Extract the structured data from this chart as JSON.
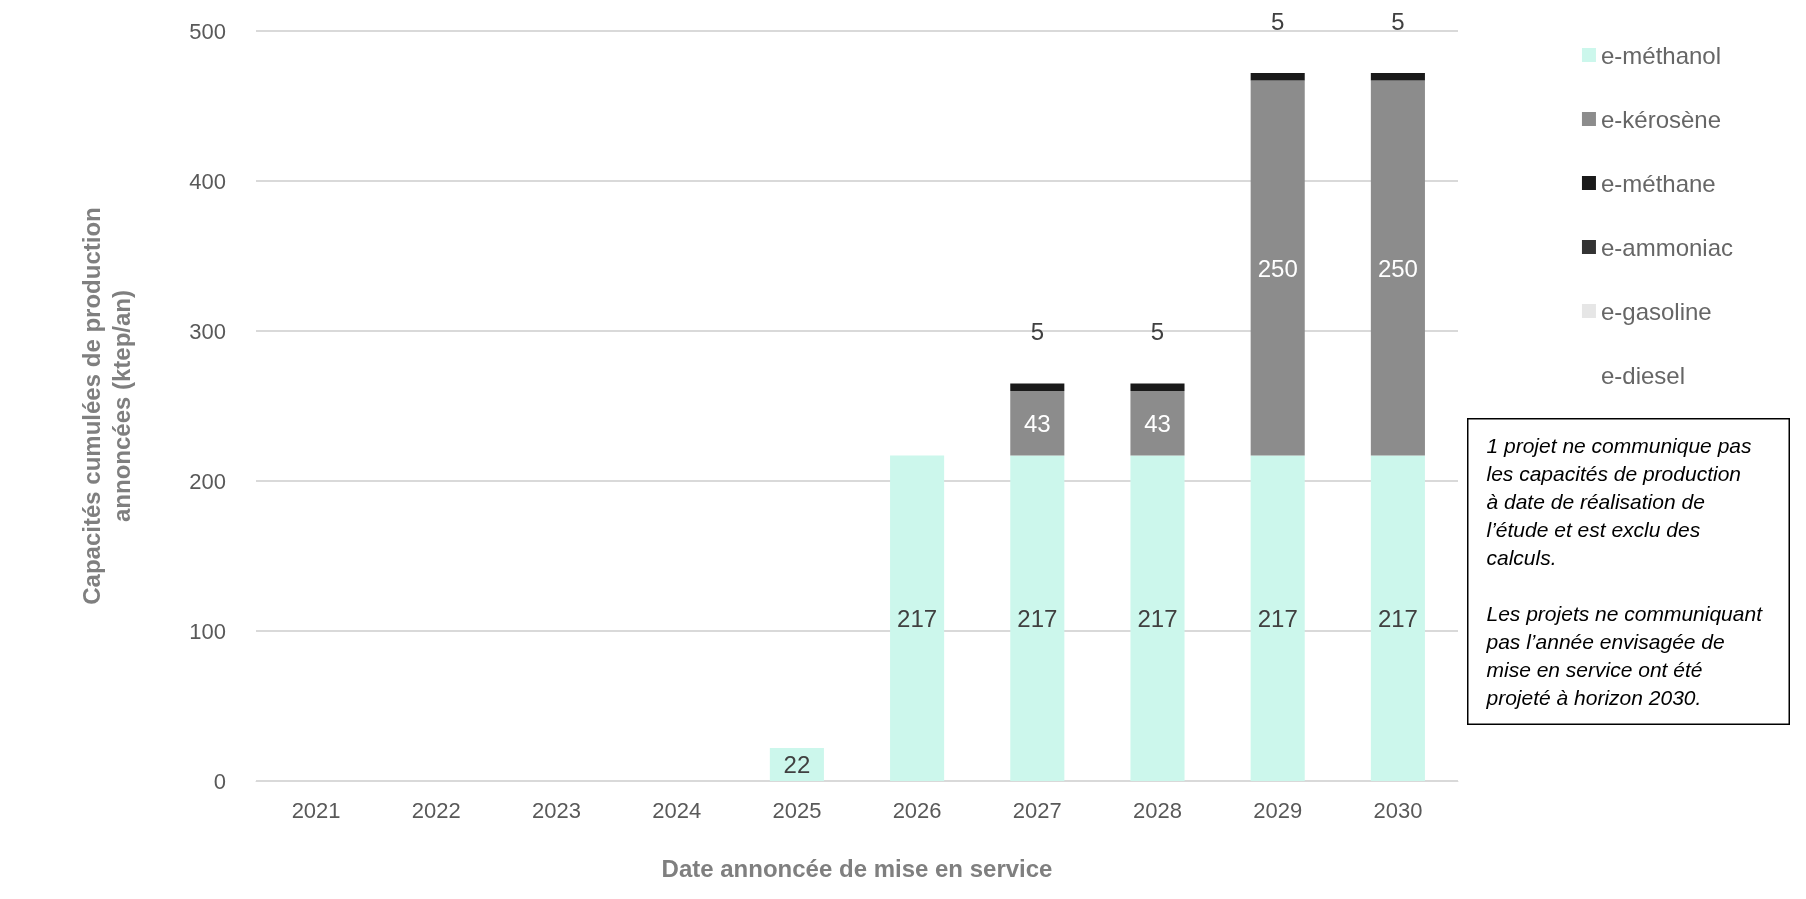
{
  "chart_data": {
    "type": "bar",
    "stacked": true,
    "xlabel": "Date annoncée de mise en service",
    "ylabel": "Capacités cumulées de production\nannoncées (ktep/an)",
    "categories": [
      "2021",
      "2022",
      "2023",
      "2024",
      "2025",
      "2026",
      "2027",
      "2028",
      "2029",
      "2030"
    ],
    "series": [
      {
        "name": "e-méthanol",
        "color": "#ccf7ec",
        "values": [
          null,
          null,
          null,
          null,
          22,
          217,
          217,
          217,
          217,
          217
        ]
      },
      {
        "name": "e-kérosène",
        "color": "#8c8c8c",
        "values": [
          null,
          null,
          null,
          null,
          null,
          null,
          43,
          43,
          250,
          250
        ]
      },
      {
        "name": "e-méthane",
        "color": "#1a1a1a",
        "values": [
          null,
          null,
          null,
          null,
          null,
          null,
          5,
          5,
          5,
          5
        ]
      },
      {
        "name": "e-ammoniac",
        "color": "#333333",
        "values": [
          null,
          null,
          null,
          null,
          null,
          null,
          null,
          null,
          null,
          null
        ]
      },
      {
        "name": "e-gasoline",
        "color": "#e6e6e6",
        "values": [
          null,
          null,
          null,
          null,
          null,
          null,
          null,
          null,
          null,
          null
        ]
      },
      {
        "name": "e-diesel",
        "values": [
          null,
          null,
          null,
          null,
          null,
          null,
          null,
          null,
          null,
          null
        ]
      }
    ],
    "ylim": [
      0,
      500
    ],
    "yticks": [
      0,
      100,
      200,
      300,
      400,
      500
    ],
    "grid": "y",
    "legend": "right",
    "data_labels": true,
    "annotations": [
      "1 projet ne communique pas les capacités de production à date de réalisation de l’étude et est exclu des calculs.",
      "Les projets ne communiquant pas l’année envisagée de mise en service ont été projeté à horizon 2030."
    ]
  }
}
